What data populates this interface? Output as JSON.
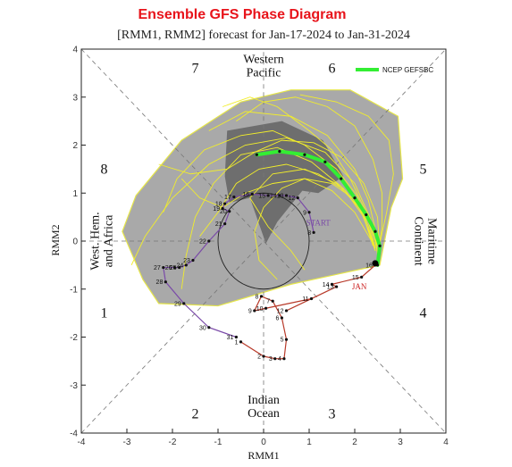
{
  "chart_data": {
    "type": "line",
    "title": "Ensemble GFS Phase Diagram",
    "subtitle": "[RMM1, RMM2] forecast for Jan-17-2024 to Jan-31-2024",
    "xlabel": "RMM1",
    "ylabel": "RMM2",
    "xlim": [
      -4,
      4
    ],
    "ylim": [
      -4,
      4
    ],
    "xticks": [
      "-4",
      "-3",
      "-2",
      "-1",
      "0",
      "1",
      "2",
      "3",
      "4"
    ],
    "yticks": [
      "-4",
      "-3",
      "-2",
      "-1",
      "0",
      "1",
      "2",
      "3",
      "4"
    ],
    "phases": [
      {
        "label": "1",
        "x": -3.5,
        "y": -1.5
      },
      {
        "label": "2",
        "x": -1.5,
        "y": -3.6
      },
      {
        "label": "3",
        "x": 1.5,
        "y": -3.6
      },
      {
        "label": "4",
        "x": 3.5,
        "y": -1.5
      },
      {
        "label": "5",
        "x": 3.5,
        "y": 1.5
      },
      {
        "label": "6",
        "x": 1.5,
        "y": 3.6
      },
      {
        "label": "7",
        "x": -1.5,
        "y": 3.6
      },
      {
        "label": "8",
        "x": -3.5,
        "y": 1.5
      }
    ],
    "regions": [
      {
        "lines": [
          "Western",
          "Pacific"
        ],
        "x": 0,
        "y": 3.65,
        "rotate": 0
      },
      {
        "lines": [
          "Indian",
          "Ocean"
        ],
        "x": 0,
        "y": -3.45,
        "rotate": 0
      },
      {
        "lines": [
          "West. Hem.",
          "and Africa"
        ],
        "x": -3.55,
        "y": 0,
        "rotate": -90
      },
      {
        "lines": [
          "Maritime",
          "Continent"
        ],
        "x": 3.55,
        "y": 0,
        "rotate": 90
      }
    ],
    "annotations": [
      {
        "text": "START",
        "x": 1.2,
        "y": 0.33,
        "color": "#7a4aa8"
      },
      {
        "text": "JAN",
        "x": 2.1,
        "y": -1.0,
        "color": "#cc2222"
      }
    ],
    "legend": {
      "label": "NCEP GEFSBC",
      "color": "#33ee33",
      "position": "top-right"
    },
    "observed_jan": {
      "color": "#b83a2a",
      "points": [
        {
          "d": "1",
          "x": -0.5,
          "y": -2.1
        },
        {
          "d": "2",
          "x": 0.0,
          "y": -2.4
        },
        {
          "d": "3",
          "x": 0.25,
          "y": -2.45
        },
        {
          "d": "4",
          "x": 0.45,
          "y": -2.45
        },
        {
          "d": "5",
          "x": 0.5,
          "y": -2.05
        },
        {
          "d": "6",
          "x": 0.4,
          "y": -1.6
        },
        {
          "d": "7",
          "x": 0.2,
          "y": -1.25
        },
        {
          "d": "8",
          "x": -0.05,
          "y": -1.15
        },
        {
          "d": "9",
          "x": -0.2,
          "y": -1.45
        },
        {
          "d": "10",
          "x": 0.05,
          "y": -1.4
        },
        {
          "d": "11",
          "x": 1.05,
          "y": -1.2
        },
        {
          "d": "12",
          "x": 0.5,
          "y": -1.45
        },
        {
          "d": "13",
          "x": 1.6,
          "y": -0.95
        },
        {
          "d": "14",
          "x": 1.5,
          "y": -0.9
        },
        {
          "d": "15",
          "x": 2.15,
          "y": -0.75
        },
        {
          "d": "16",
          "x": 2.45,
          "y": -0.5
        }
      ]
    },
    "observed_dec": {
      "color": "#7a4aa8",
      "points": [
        {
          "d": "8",
          "x": 1.1,
          "y": 0.18
        },
        {
          "d": "9",
          "x": 1.0,
          "y": 0.6
        },
        {
          "d": "12",
          "x": 0.75,
          "y": 0.9
        },
        {
          "d": "13",
          "x": 0.5,
          "y": 0.95
        },
        {
          "d": "14",
          "x": 0.35,
          "y": 0.95
        },
        {
          "d": "15",
          "x": 0.1,
          "y": 0.95
        },
        {
          "d": "16",
          "x": -0.25,
          "y": 0.98
        },
        {
          "d": "17",
          "x": -0.65,
          "y": 0.92
        },
        {
          "d": "18",
          "x": -0.85,
          "y": 0.78
        },
        {
          "d": "19",
          "x": -0.9,
          "y": 0.68
        },
        {
          "d": "20",
          "x": -0.75,
          "y": 0.62
        },
        {
          "d": "21",
          "x": -0.85,
          "y": 0.36
        },
        {
          "d": "22",
          "x": -1.2,
          "y": 0.0
        },
        {
          "d": "23",
          "x": -1.55,
          "y": -0.4
        },
        {
          "d": "24",
          "x": -1.7,
          "y": -0.5
        },
        {
          "d": "25",
          "x": -1.85,
          "y": -0.55
        },
        {
          "d": "26",
          "x": -1.95,
          "y": -0.55
        },
        {
          "d": "27",
          "x": -2.2,
          "y": -0.55
        },
        {
          "d": "28",
          "x": -2.15,
          "y": -0.85
        },
        {
          "d": "29",
          "x": -1.75,
          "y": -1.3
        },
        {
          "d": "30",
          "x": -1.2,
          "y": -1.8
        },
        {
          "d": "31",
          "x": -0.6,
          "y": -2.0
        }
      ]
    },
    "ensemble_mean": {
      "color": "#33ee33",
      "points": [
        {
          "x": 2.5,
          "y": -0.5
        },
        {
          "x": 2.55,
          "y": -0.1
        },
        {
          "x": 2.45,
          "y": 0.2
        },
        {
          "x": 2.25,
          "y": 0.55
        },
        {
          "x": 2.0,
          "y": 0.9
        },
        {
          "x": 1.7,
          "y": 1.3
        },
        {
          "x": 1.35,
          "y": 1.65
        },
        {
          "x": 0.9,
          "y": 1.8
        },
        {
          "x": 0.35,
          "y": 1.87
        },
        {
          "x": -0.15,
          "y": 1.8
        }
      ]
    },
    "spread_outer": [
      {
        "x": -3.1,
        "y": 0.2
      },
      {
        "x": -2.8,
        "y": 0.95
      },
      {
        "x": -1.8,
        "y": 2.1
      },
      {
        "x": -0.5,
        "y": 2.9
      },
      {
        "x": 0.6,
        "y": 3.15
      },
      {
        "x": 1.9,
        "y": 3.15
      },
      {
        "x": 2.95,
        "y": 2.6
      },
      {
        "x": 3.05,
        "y": 1.3
      },
      {
        "x": 2.8,
        "y": 0.7
      },
      {
        "x": 2.55,
        "y": -0.5
      },
      {
        "x": 0.6,
        "y": -0.9
      },
      {
        "x": -1.0,
        "y": -1.35
      },
      {
        "x": -2.3,
        "y": -1.3
      },
      {
        "x": -2.65,
        "y": -0.8
      }
    ],
    "spread_inner": [
      {
        "x": -0.8,
        "y": 2.3
      },
      {
        "x": 0.4,
        "y": 2.5
      },
      {
        "x": 1.3,
        "y": 2.1
      },
      {
        "x": 1.75,
        "y": 1.35
      },
      {
        "x": 1.2,
        "y": 1.0
      },
      {
        "x": 0.85,
        "y": 1.05
      },
      {
        "x": 0.3,
        "y": 0.4
      },
      {
        "x": 0.05,
        "y": -0.05
      },
      {
        "x": -0.3,
        "y": 0.9
      },
      {
        "x": -0.75,
        "y": 0.8
      },
      {
        "x": -0.85,
        "y": 1.35
      }
    ],
    "members": [
      [
        [
          2.45,
          -0.2
        ],
        [
          2.3,
          0.3
        ],
        [
          2.05,
          0.95
        ],
        [
          1.6,
          1.5
        ],
        [
          0.9,
          2.0
        ],
        [
          0.2,
          2.3
        ],
        [
          -0.5,
          2.2
        ],
        [
          -1.3,
          1.9
        ],
        [
          -1.9,
          1.3
        ],
        [
          -2.2,
          0.6
        ]
      ],
      [
        [
          2.5,
          -0.3
        ],
        [
          2.45,
          0.25
        ],
        [
          2.3,
          0.85
        ],
        [
          2.0,
          1.5
        ],
        [
          1.4,
          2.2
        ],
        [
          0.6,
          2.6
        ],
        [
          -0.4,
          2.7
        ],
        [
          -1.2,
          2.3
        ]
      ],
      [
        [
          2.4,
          -0.1
        ],
        [
          2.2,
          0.5
        ],
        [
          1.8,
          1.05
        ],
        [
          1.2,
          1.4
        ],
        [
          0.5,
          1.6
        ],
        [
          -0.1,
          1.5
        ],
        [
          -0.6,
          1.2
        ],
        [
          -1.0,
          0.6
        ],
        [
          -1.4,
          0.1
        ]
      ],
      [
        [
          2.55,
          -0.05
        ],
        [
          2.7,
          0.6
        ],
        [
          2.85,
          1.4
        ],
        [
          2.75,
          2.1
        ],
        [
          2.3,
          2.6
        ],
        [
          1.6,
          2.9
        ],
        [
          0.8,
          3.05
        ]
      ],
      [
        [
          2.4,
          0.0
        ],
        [
          2.1,
          0.7
        ],
        [
          1.6,
          1.2
        ],
        [
          0.9,
          1.5
        ],
        [
          0.2,
          1.4
        ],
        [
          -0.3,
          0.9
        ],
        [
          0.1,
          0.3
        ],
        [
          0.6,
          -0.2
        ],
        [
          0.9,
          -0.6
        ]
      ],
      [
        [
          2.5,
          -0.25
        ],
        [
          2.35,
          0.45
        ],
        [
          2.0,
          1.2
        ],
        [
          1.35,
          1.85
        ],
        [
          0.5,
          2.15
        ],
        [
          -0.4,
          2.0
        ],
        [
          -1.2,
          1.6
        ],
        [
          -2.0,
          0.9
        ],
        [
          -2.6,
          0.1
        ],
        [
          -2.9,
          -0.5
        ]
      ],
      [
        [
          2.45,
          -0.15
        ],
        [
          2.25,
          0.6
        ],
        [
          1.9,
          1.3
        ],
        [
          1.5,
          1.9
        ],
        [
          1.0,
          2.3
        ],
        [
          0.3,
          2.8
        ],
        [
          -0.3,
          3.0
        ],
        [
          -0.9,
          2.8
        ]
      ],
      [
        [
          2.5,
          -0.1
        ],
        [
          2.3,
          0.4
        ],
        [
          1.95,
          0.9
        ],
        [
          1.5,
          1.2
        ],
        [
          0.9,
          1.3
        ],
        [
          0.4,
          1.1
        ],
        [
          0.0,
          0.7
        ],
        [
          -0.2,
          0.2
        ],
        [
          -0.1,
          -0.4
        ],
        [
          0.3,
          -0.8
        ]
      ],
      [
        [
          2.45,
          -0.2
        ],
        [
          2.2,
          0.5
        ],
        [
          1.75,
          1.1
        ],
        [
          1.05,
          1.65
        ],
        [
          0.3,
          1.95
        ],
        [
          -0.5,
          1.8
        ],
        [
          -1.1,
          1.2
        ],
        [
          -1.5,
          0.5
        ],
        [
          -1.7,
          -0.3
        ],
        [
          -1.8,
          -1.0
        ]
      ],
      [
        [
          2.5,
          -0.3
        ],
        [
          2.6,
          0.3
        ],
        [
          2.6,
          1.0
        ],
        [
          2.4,
          1.7
        ],
        [
          2.0,
          2.4
        ],
        [
          1.4,
          2.8
        ],
        [
          0.7,
          3.0
        ],
        [
          0.0,
          2.9
        ],
        [
          -0.6,
          2.5
        ]
      ],
      [
        [
          2.4,
          -0.05
        ],
        [
          2.0,
          0.6
        ],
        [
          1.5,
          1.05
        ],
        [
          0.9,
          1.3
        ],
        [
          0.2,
          1.2
        ],
        [
          -0.4,
          1.0
        ],
        [
          -0.9,
          0.7
        ],
        [
          -1.4,
          0.9
        ],
        [
          -1.8,
          1.3
        ]
      ],
      [
        [
          2.55,
          -0.2
        ],
        [
          2.5,
          0.5
        ],
        [
          2.2,
          1.2
        ],
        [
          1.7,
          1.75
        ],
        [
          1.1,
          2.05
        ],
        [
          0.4,
          2.1
        ],
        [
          -0.2,
          1.85
        ],
        [
          -0.8,
          1.5
        ],
        [
          -1.6,
          1.4
        ],
        [
          -2.3,
          1.6
        ]
      ]
    ]
  }
}
